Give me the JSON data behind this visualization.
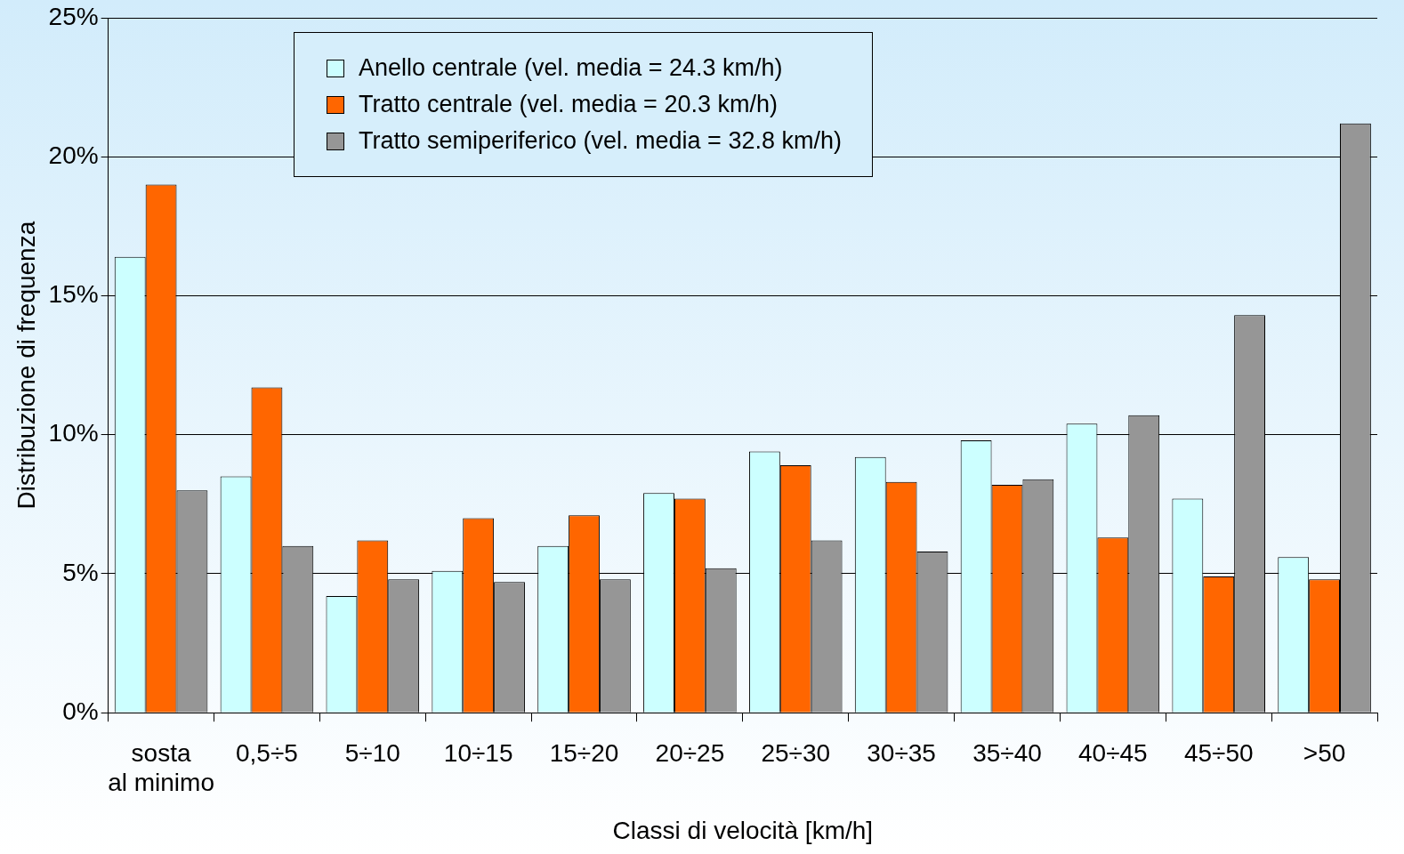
{
  "chart_data": {
    "type": "bar",
    "xlabel": "Classi di velocità [km/h]",
    "ylabel": "Distribuzione di frequenza",
    "categories": [
      "sosta\nal minimo",
      "0,5÷5",
      "5÷10",
      "10÷15",
      "15÷20",
      "20÷25",
      "25÷30",
      "30÷35",
      "35÷40",
      "40÷45",
      "45÷50",
      ">50"
    ],
    "series": [
      {
        "name": "Anello centrale (vel. media = 24.3 km/h)",
        "color": "#ccffff",
        "values": [
          16.4,
          8.5,
          4.2,
          5.1,
          6.0,
          7.9,
          9.4,
          9.2,
          9.8,
          10.4,
          7.7,
          5.6
        ]
      },
      {
        "name": "Tratto centrale (vel. media = 20.3 km/h)",
        "color": "#ff6600",
        "values": [
          19.0,
          11.7,
          6.2,
          7.0,
          7.1,
          7.7,
          8.9,
          8.3,
          8.2,
          6.3,
          4.9,
          4.8
        ]
      },
      {
        "name": "Tratto semiperiferico (vel. media = 32.8 km/h)",
        "color": "#969696",
        "values": [
          8.0,
          6.0,
          4.8,
          4.7,
          4.8,
          5.2,
          6.2,
          5.8,
          8.4,
          10.7,
          14.3,
          21.2
        ]
      }
    ],
    "ylim": [
      0,
      25
    ],
    "yticks": [
      {
        "value": 0,
        "label": "0%"
      },
      {
        "value": 5,
        "label": "5%"
      },
      {
        "value": 10,
        "label": "10%"
      },
      {
        "value": 15,
        "label": "15%"
      },
      {
        "value": 20,
        "label": "20%"
      },
      {
        "value": 25,
        "label": "25%"
      }
    ],
    "grid": "y",
    "legend": "top"
  }
}
